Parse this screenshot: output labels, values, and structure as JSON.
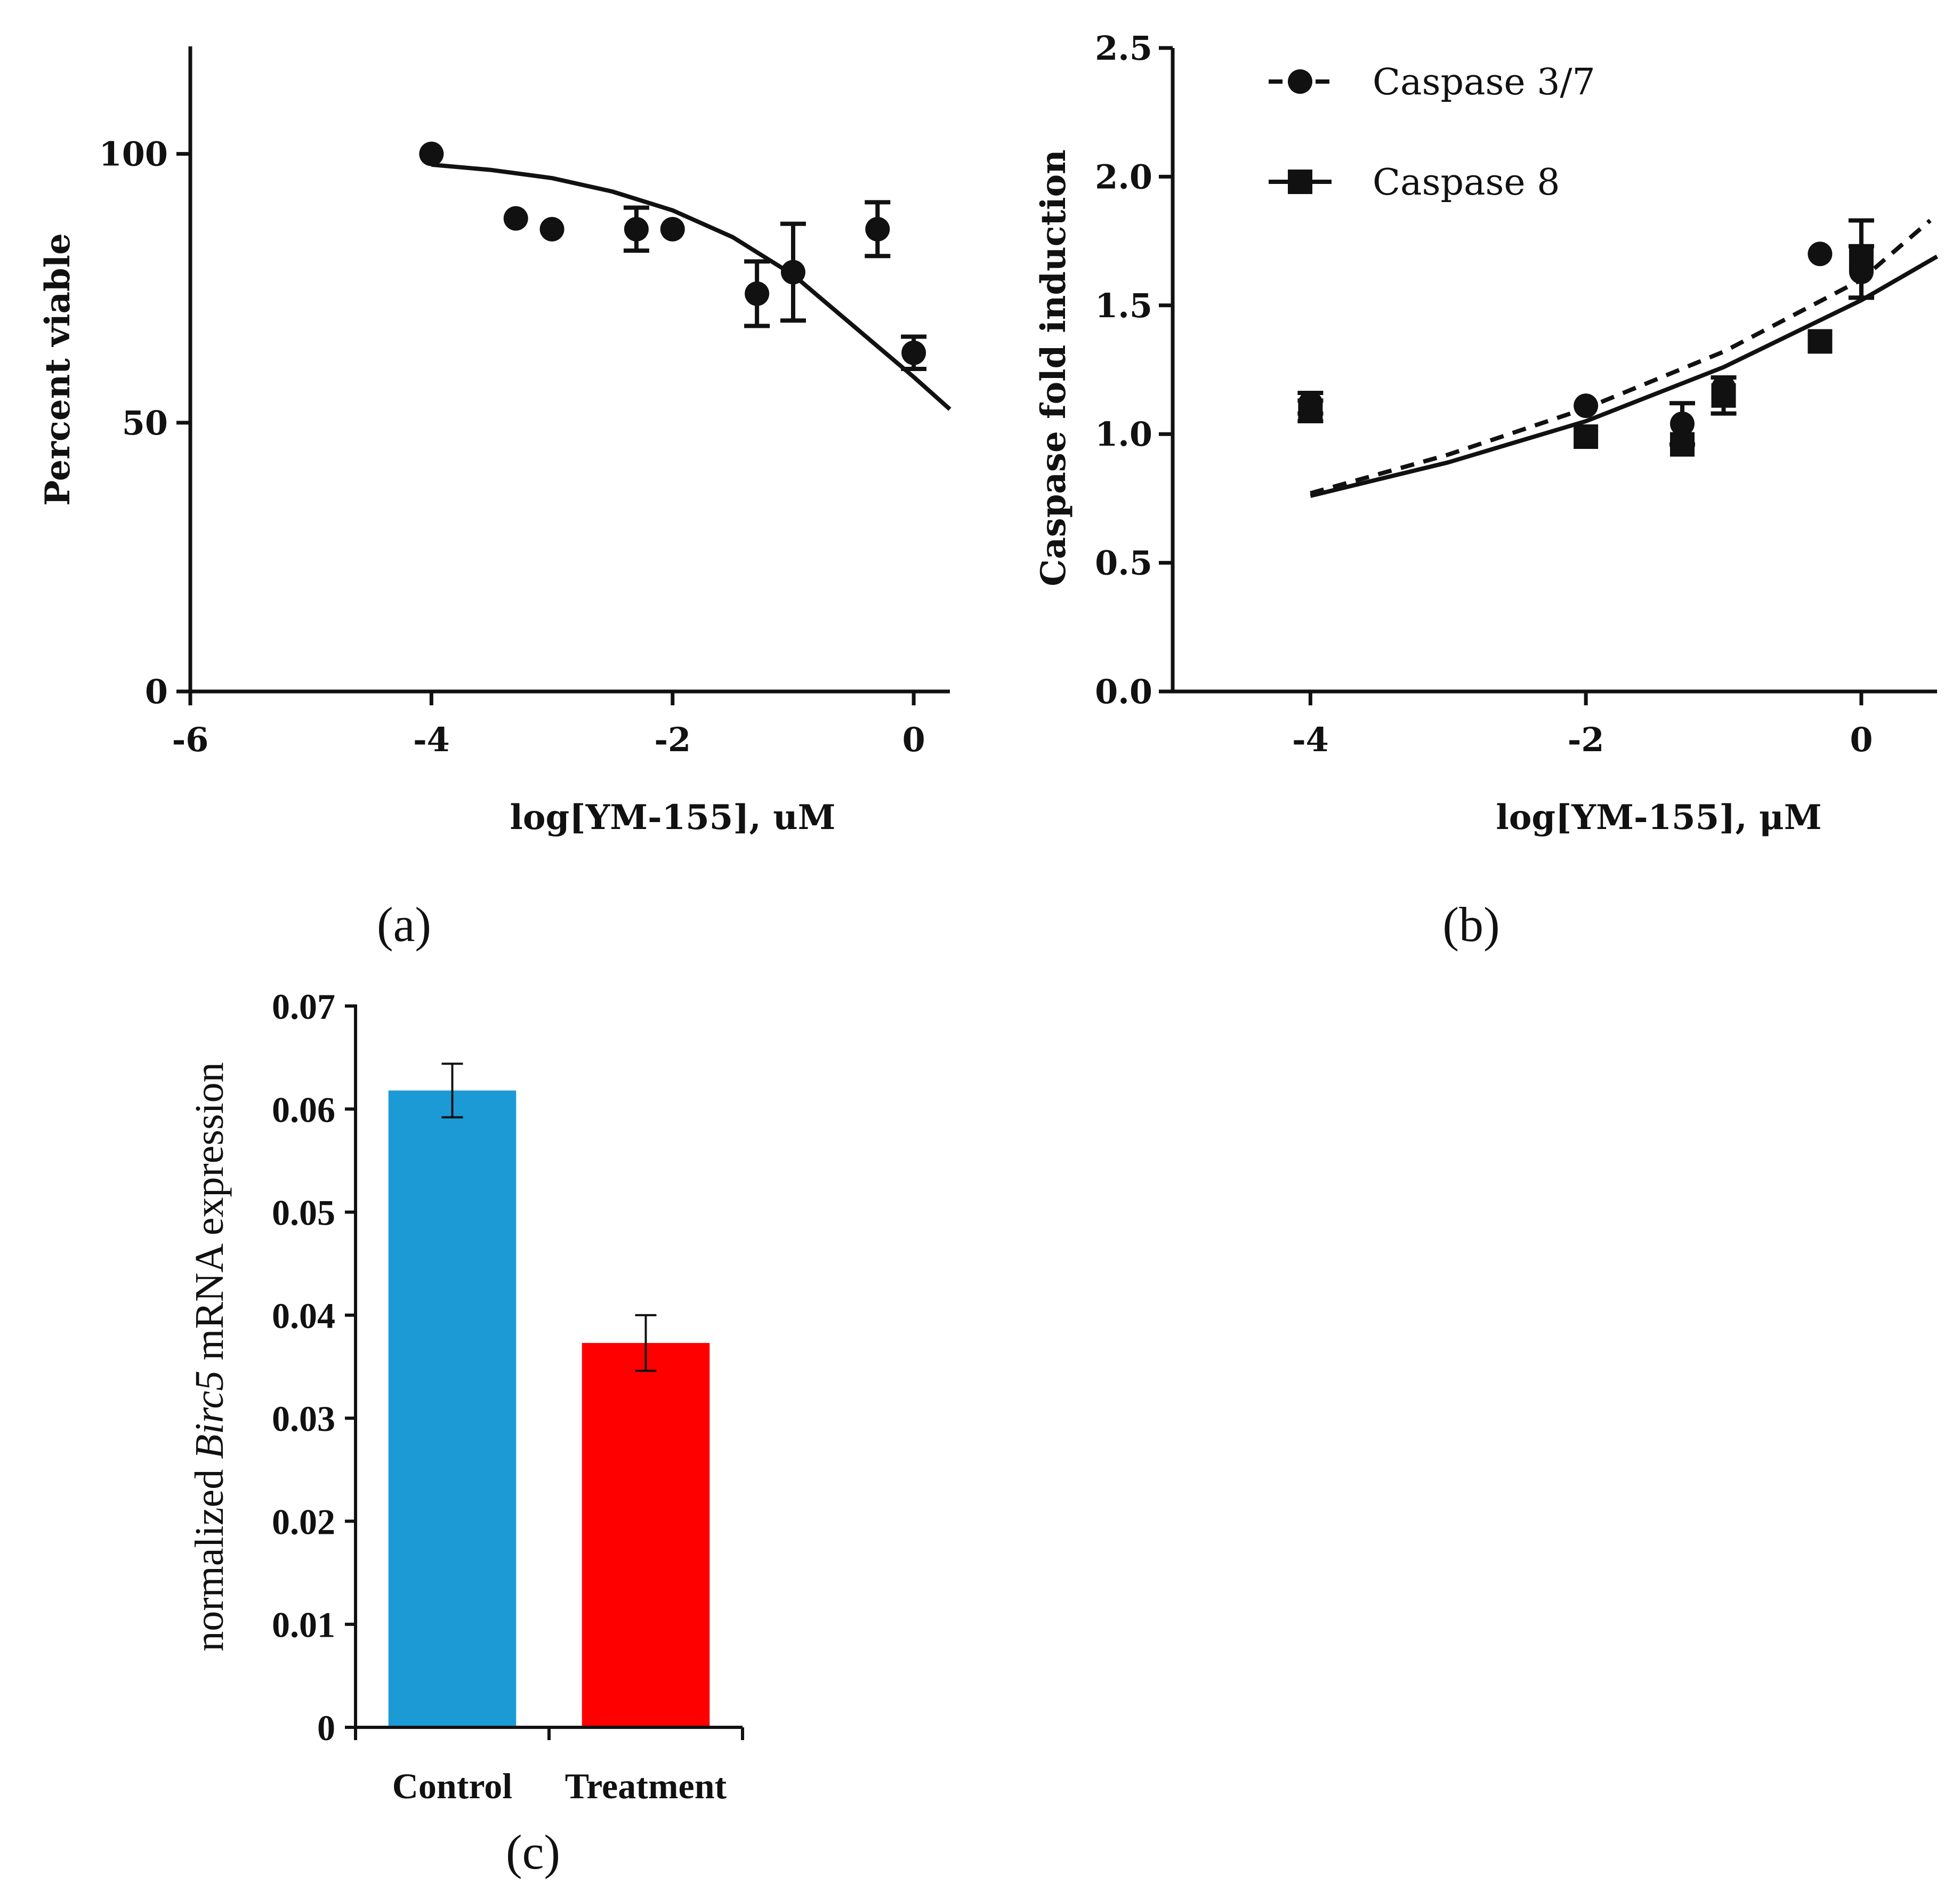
{
  "panel_labels": {
    "a": "(a)",
    "b": "(b)",
    "c": "(c)"
  },
  "colors": {
    "ink": "#111111",
    "control_bar": "#1b9ad6",
    "treatment_bar": "#ff0000"
  },
  "chart_data": [
    {
      "id": "a",
      "type": "scatter",
      "title": "",
      "xlabel": "log[YM-155], uM",
      "ylabel": "Percent viable",
      "xlim": [
        -6,
        0.3
      ],
      "ylim": [
        0,
        120
      ],
      "xticks": [
        -6,
        -4,
        -2,
        0
      ],
      "yticks": [
        0,
        50,
        100
      ],
      "series": [
        {
          "name": "Percent viable",
          "marker": "circle",
          "points": [
            {
              "x": -4.0,
              "y": 100,
              "err": 0
            },
            {
              "x": -3.3,
              "y": 88,
              "err": 0
            },
            {
              "x": -3.0,
              "y": 86,
              "err": 0
            },
            {
              "x": -2.3,
              "y": 86,
              "err": 4
            },
            {
              "x": -2.0,
              "y": 86,
              "err": 0
            },
            {
              "x": -1.3,
              "y": 74,
              "err": 6
            },
            {
              "x": -1.0,
              "y": 78,
              "err": 9
            },
            {
              "x": -0.3,
              "y": 86,
              "err": 5
            },
            {
              "x": 0.0,
              "y": 63,
              "err": 3
            }
          ],
          "fit": {
            "style": "solid",
            "x": [
              -4.0,
              -3.5,
              -3.0,
              -2.5,
              -2.0,
              -1.5,
              -1.0,
              -0.5,
              0.0,
              0.3
            ],
            "y": [
              98,
              97,
              95.5,
              93,
              89.5,
              84.5,
              77.5,
              68,
              58.5,
              52.5
            ]
          }
        }
      ]
    },
    {
      "id": "b",
      "type": "scatter",
      "title": "",
      "xlabel": "log[YM-155], μM",
      "ylabel": "Caspase fold induction",
      "xlim": [
        -5,
        0.55
      ],
      "ylim": [
        0,
        2.5
      ],
      "xticks": [
        -4,
        -2,
        0
      ],
      "yticks": [
        0.0,
        0.5,
        1.0,
        1.5,
        2.0,
        2.5
      ],
      "ytick_labels": [
        "0.0",
        "0.5",
        "1.0",
        "1.5",
        "2.0",
        "2.5"
      ],
      "legend_position": "top-left",
      "series": [
        {
          "name": "Caspase 3/7",
          "marker": "circle",
          "line": "dashed",
          "points": [
            {
              "x": -4.0,
              "y": 1.12,
              "err": 0.04
            },
            {
              "x": -2.0,
              "y": 1.11,
              "err": 0
            },
            {
              "x": -1.3,
              "y": 1.04,
              "err": 0.08
            },
            {
              "x": -1.0,
              "y": 1.18,
              "err": 0
            },
            {
              "x": -0.3,
              "y": 1.7,
              "err": 0
            },
            {
              "x": 0.0,
              "y": 1.63,
              "err": 0.1
            }
          ],
          "fit": {
            "x": [
              -4.0,
              -3.0,
              -2.0,
              -1.0,
              0.0,
              0.5
            ],
            "y": [
              0.77,
              0.92,
              1.1,
              1.32,
              1.6,
              1.83
            ]
          }
        },
        {
          "name": "Caspase 8",
          "marker": "square",
          "line": "solid",
          "points": [
            {
              "x": -4.0,
              "y": 1.09,
              "err": 0.04
            },
            {
              "x": -2.0,
              "y": 0.99,
              "err": 0
            },
            {
              "x": -1.3,
              "y": 0.96,
              "err": 0
            },
            {
              "x": -1.0,
              "y": 1.15,
              "err": 0.07
            },
            {
              "x": -0.3,
              "y": 1.36,
              "err": 0
            },
            {
              "x": 0.0,
              "y": 1.68,
              "err": 0.15
            }
          ],
          "fit": {
            "x": [
              -4.0,
              -3.0,
              -2.0,
              -1.0,
              0.0,
              0.55
            ],
            "y": [
              0.76,
              0.89,
              1.05,
              1.26,
              1.52,
              1.69
            ]
          }
        }
      ]
    },
    {
      "id": "c",
      "type": "bar",
      "title": "",
      "xlabel": "",
      "ylabel_prefix": "normalized ",
      "ylabel_gene": "Birc5",
      "ylabel_suffix": " mRNA expression",
      "ylim": [
        0,
        0.07
      ],
      "yticks": [
        0,
        0.01,
        0.02,
        0.03,
        0.04,
        0.05,
        0.06,
        0.07
      ],
      "ytick_labels": [
        "0",
        "0.01",
        "0.02",
        "0.03",
        "0.04",
        "0.05",
        "0.06",
        "0.07"
      ],
      "categories": [
        "Control",
        "Treatment"
      ],
      "values": [
        0.0618,
        0.0373
      ],
      "errors": [
        0.0026,
        0.0027
      ]
    }
  ]
}
